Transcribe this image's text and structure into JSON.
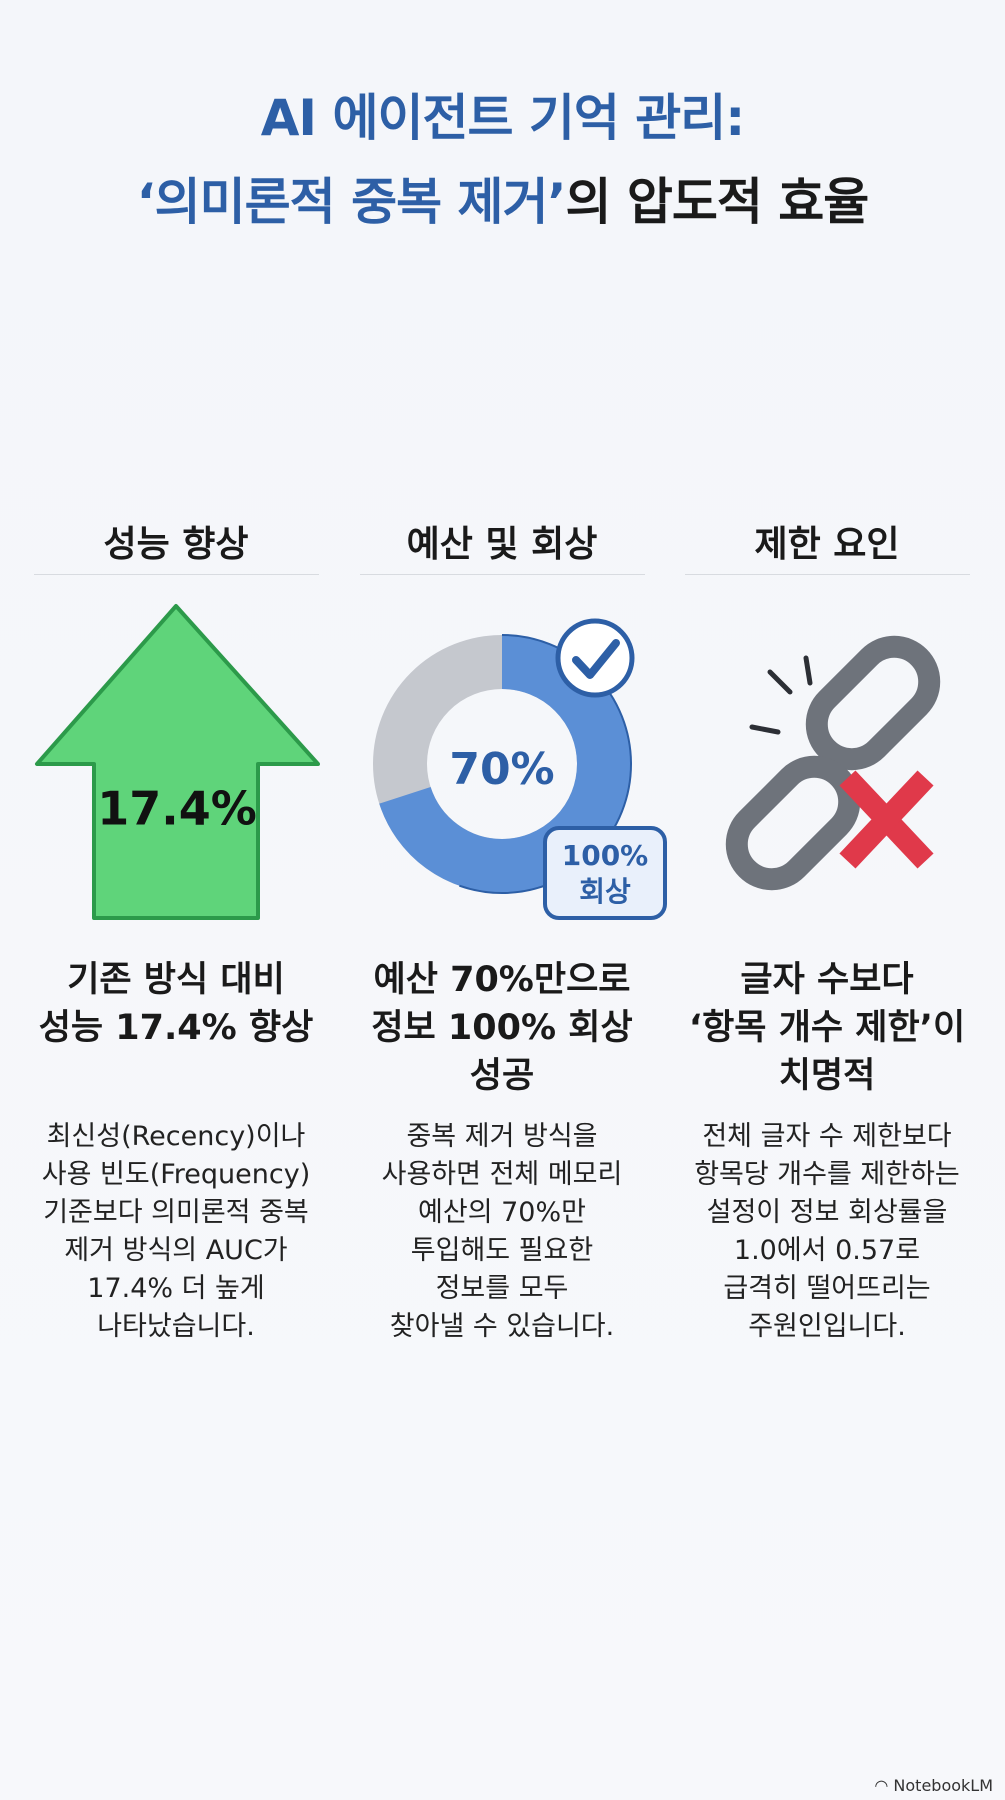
{
  "title": {
    "line1": "AI 에이전트 기억 관리:",
    "line2_highlight": "‘의미론적 중복 제거’",
    "line2_rest": "의 압도적 효율"
  },
  "columns": [
    {
      "heading": "성능 향상",
      "graphic_label": "17.4%",
      "subtitle": [
        "기존 방식 대비",
        "성능 17.4% 향상"
      ],
      "body": [
        "최신성(Recency)이나",
        "사용 빈도(Frequency)",
        "기준보다 의미론적 중복",
        "제거 방식의 AUC가",
        "17.4% 더 높게",
        "나타났습니다."
      ]
    },
    {
      "heading": "예산 및 회상",
      "graphic_label": "70%",
      "badge": [
        "100%",
        "회상"
      ],
      "subtitle": [
        "예산 70%만으로",
        "정보 100% 회상",
        "성공"
      ],
      "body": [
        "중복 제거 방식을",
        "사용하면 전체 메모리",
        "예산의 70%만",
        "투입해도 필요한",
        "정보를 모두",
        "찾아낼 수 있습니다."
      ]
    },
    {
      "heading": "제한 요인",
      "subtitle": [
        "글자 수보다",
        "‘항목 개수 제한’이",
        "치명적"
      ],
      "body": [
        "전체 글자 수 제한보다",
        "항목당 개수를 제한하는",
        "설정이 정보 회상률을",
        "1.0에서 0.57로",
        "급격히 떨어뜨리는",
        "주원인입니다."
      ]
    }
  ],
  "footer": "NotebookLM"
}
